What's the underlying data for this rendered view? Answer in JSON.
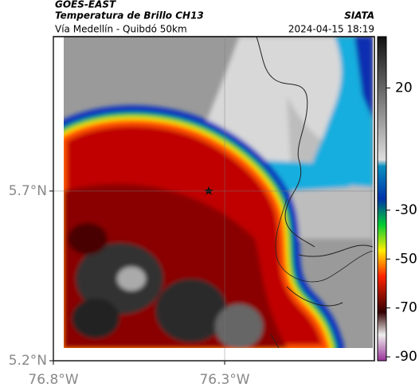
{
  "header": {
    "satellite": "GOES-EAST",
    "product": "Temperatura de Brillo CH13",
    "region": "Vía Medellín - Quibdó 50km",
    "source": "SIATA",
    "datetime": "2024-04-15 18:19"
  },
  "map": {
    "xlim": [
      -76.8,
      -75.863
    ],
    "ylim": [
      5.2,
      6.155
    ],
    "xticks": [
      {
        "value": -76.8,
        "label": "76.8°W"
      },
      {
        "value": -76.3,
        "label": "76.3°W"
      }
    ],
    "yticks": [
      {
        "value": 5.7,
        "label": "5.7°N"
      },
      {
        "value": 5.2,
        "label": "5.2°N"
      }
    ]
  },
  "colorbar": {
    "lim": [
      41,
      -91.6
    ],
    "ticks": [
      20,
      -30,
      -50,
      -70,
      -90
    ]
  }
}
